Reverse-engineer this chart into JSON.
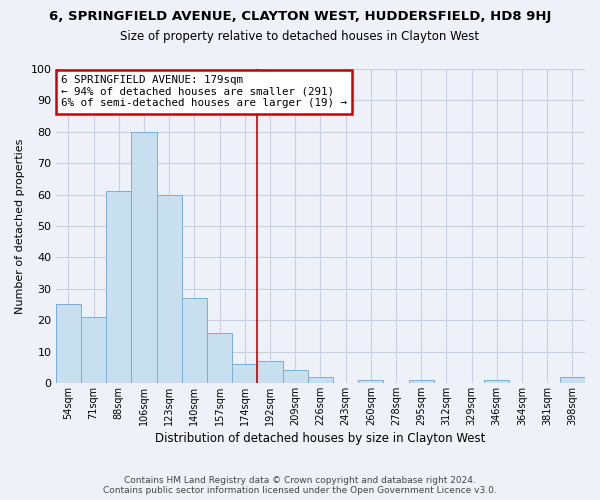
{
  "title": "6, SPRINGFIELD AVENUE, CLAYTON WEST, HUDDERSFIELD, HD8 9HJ",
  "subtitle": "Size of property relative to detached houses in Clayton West",
  "xlabel": "Distribution of detached houses by size in Clayton West",
  "ylabel": "Number of detached properties",
  "bar_labels": [
    "54sqm",
    "71sqm",
    "88sqm",
    "106sqm",
    "123sqm",
    "140sqm",
    "157sqm",
    "174sqm",
    "192sqm",
    "209sqm",
    "226sqm",
    "243sqm",
    "260sqm",
    "278sqm",
    "295sqm",
    "312sqm",
    "329sqm",
    "346sqm",
    "364sqm",
    "381sqm",
    "398sqm"
  ],
  "bar_values": [
    25,
    21,
    61,
    80,
    60,
    27,
    16,
    6,
    7,
    4,
    2,
    0,
    1,
    0,
    1,
    0,
    0,
    1,
    0,
    0,
    2
  ],
  "bar_color": "#c8dff0",
  "bar_edge_color": "#7bafd4",
  "vline_x": 7.5,
  "vline_color": "#cc0000",
  "ylim": [
    0,
    100
  ],
  "yticks": [
    0,
    10,
    20,
    30,
    40,
    50,
    60,
    70,
    80,
    90,
    100
  ],
  "annotation_title": "6 SPRINGFIELD AVENUE: 179sqm",
  "annotation_line1": "← 94% of detached houses are smaller (291)",
  "annotation_line2": "6% of semi-detached houses are larger (19) →",
  "annotation_box_color": "#ffffff",
  "annotation_box_edge": "#cc0000",
  "footer_line1": "Contains HM Land Registry data © Crown copyright and database right 2024.",
  "footer_line2": "Contains public sector information licensed under the Open Government Licence v3.0.",
  "background_color": "#eef2f8",
  "grid_color": "#c8d0e0",
  "title_fontsize": 9.5,
  "subtitle_fontsize": 8.5
}
